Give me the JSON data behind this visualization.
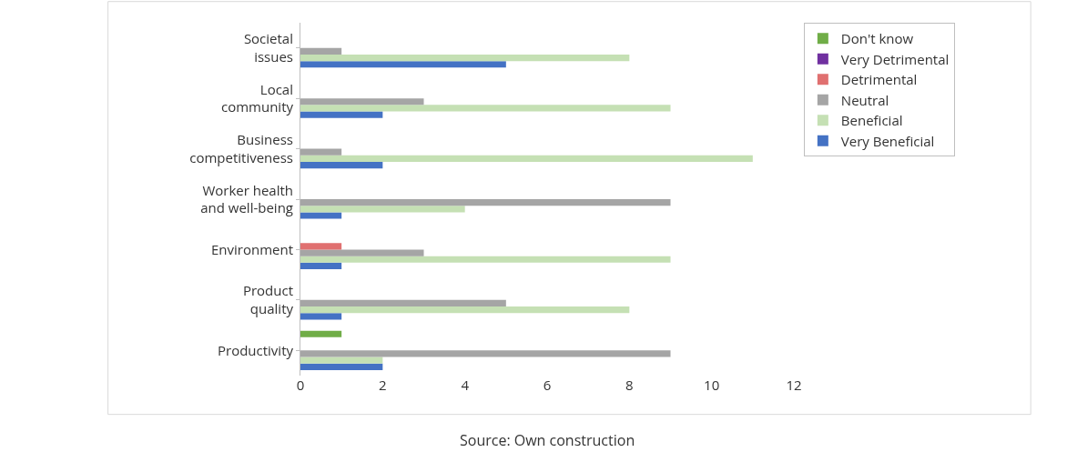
{
  "chart_data": {
    "type": "bar",
    "orientation": "horizontal",
    "categories": [
      "Societal issues",
      "Local community",
      "Business competitiveness",
      "Worker health and well-being",
      "Environment",
      "Product quality",
      "Productivity"
    ],
    "series": [
      {
        "name": "Very Beneficial",
        "color": "#4472c4",
        "values": [
          5,
          2,
          2,
          1,
          1,
          1,
          2
        ]
      },
      {
        "name": "Beneficial",
        "color": "#c5e0b4",
        "values": [
          8,
          9,
          11,
          4,
          9,
          8,
          2
        ]
      },
      {
        "name": "Neutral",
        "color": "#a5a5a5",
        "values": [
          1,
          3,
          1,
          9,
          3,
          5,
          9
        ]
      },
      {
        "name": "Detrimental",
        "color": "#e07070",
        "values": [
          0,
          0,
          0,
          0,
          1,
          0,
          0
        ]
      },
      {
        "name": "Very Detrimental",
        "color": "#7030a0",
        "values": [
          0,
          0,
          0,
          0,
          0,
          0,
          0
        ]
      },
      {
        "name": "Don't know",
        "color": "#70ad47",
        "values": [
          0,
          0,
          0,
          0,
          0,
          0,
          1
        ]
      }
    ],
    "xlim": [
      0,
      12
    ],
    "xticks": [
      0,
      2,
      4,
      6,
      8,
      10,
      12
    ],
    "grid": false,
    "legend": "right",
    "annotations": [
      "Source: Own construction"
    ]
  }
}
